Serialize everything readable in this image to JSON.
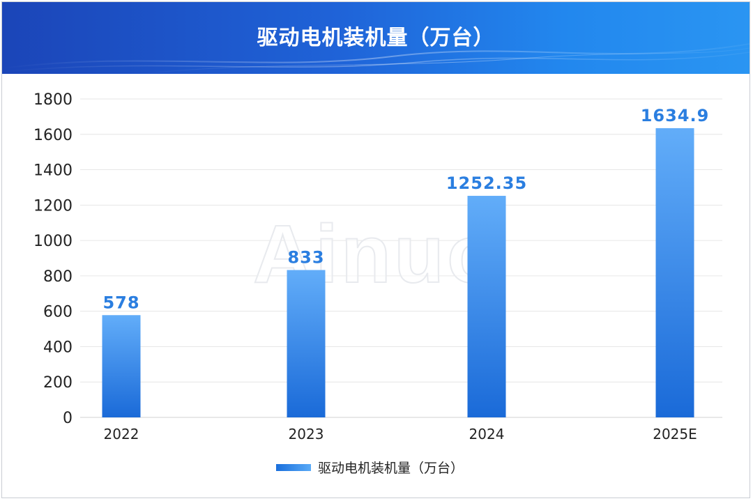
{
  "header": {
    "title": "驱动电机装机量（万台）"
  },
  "watermark": "Ainuo",
  "colors": {
    "header_start": "#1b45b8",
    "header_end": "#2a95f2",
    "bar_top": "#62adf9",
    "bar_bottom": "#1a6ad8",
    "value_label": "#2a7ee0",
    "axis_text": "#222222",
    "grid": "#e6e6e6"
  },
  "chart_data": {
    "type": "bar",
    "categories": [
      "2022",
      "2023",
      "2024",
      "2025E"
    ],
    "series": [
      {
        "name": "驱动电机装机量（万台）",
        "values": [
          578,
          833,
          1252.35,
          1634.9
        ],
        "labels": [
          "578",
          "833",
          "1252.35",
          "1634.9"
        ]
      }
    ],
    "ylim": [
      0,
      1800
    ],
    "yticks": [
      0,
      200,
      400,
      600,
      800,
      1000,
      1200,
      1400,
      1600,
      1800
    ],
    "grid": true,
    "legend_position": "bottom-center",
    "title": "驱动电机装机量（万台）",
    "xlabel": "",
    "ylabel": ""
  }
}
